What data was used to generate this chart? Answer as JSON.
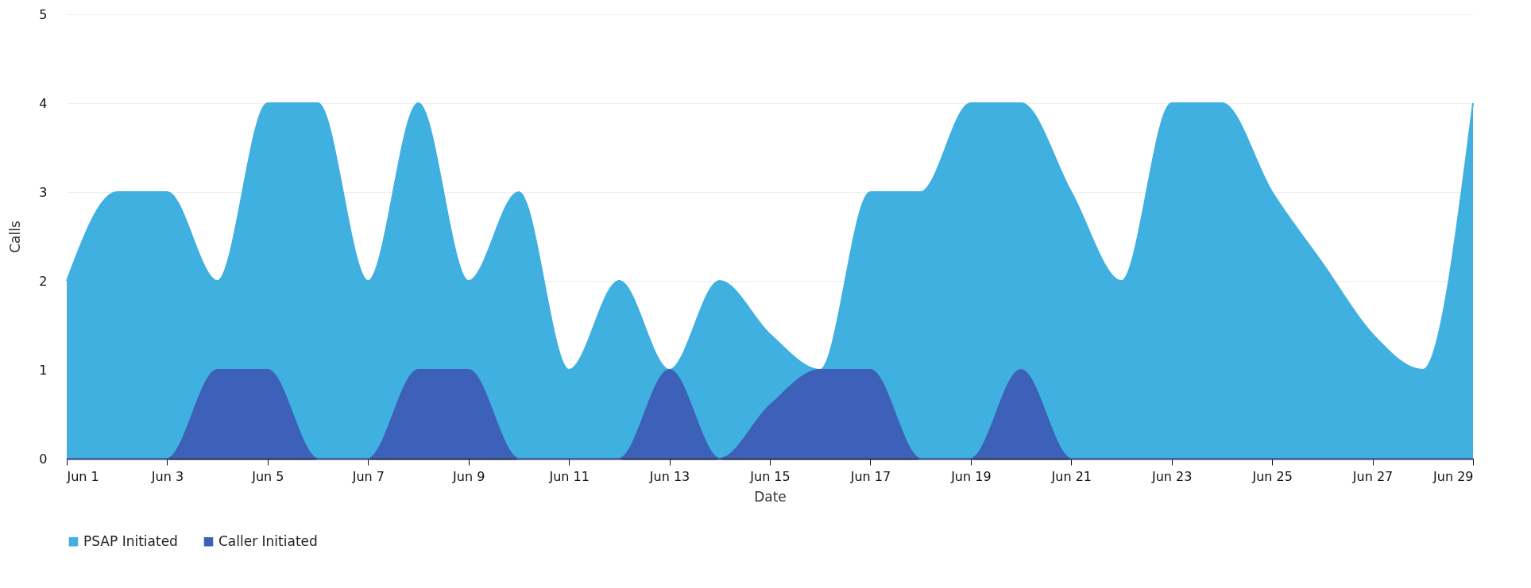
{
  "chart_data": {
    "type": "area",
    "xlabel": "Date",
    "ylabel": "Calls",
    "x": [
      "--06-01",
      "--06-02",
      "--06-03",
      "--06-04",
      "--06-05",
      "--06-06",
      "--06-07",
      "--06-08",
      "--06-09",
      "--06-10",
      "--06-11",
      "--06-12",
      "--06-13",
      "--06-14",
      "--06-15",
      "--06-16",
      "--06-17",
      "--06-18",
      "--06-19",
      "--06-20",
      "--06-21",
      "--06-22",
      "--06-23",
      "--06-24",
      "--06-25",
      "--06-26",
      "--06-27",
      "--06-28",
      "--06-29"
    ],
    "series": [
      {
        "name": "PSAP Initiated",
        "color": "#3fb0e0",
        "values": [
          2,
          3,
          3,
          2,
          4,
          4,
          2,
          4,
          2,
          3,
          1,
          2,
          1,
          2,
          1.4,
          1,
          3,
          3,
          4,
          4,
          3,
          2,
          4,
          4,
          3,
          2.2,
          1.4,
          1,
          4
        ]
      },
      {
        "name": "Caller Initiated",
        "color": "#3d60b8",
        "values": [
          0,
          0,
          0,
          1,
          1,
          0,
          0,
          1,
          1,
          0,
          0,
          0,
          1,
          0,
          0.6,
          1,
          1,
          0,
          0,
          1,
          0,
          0,
          0,
          0,
          0,
          0,
          0,
          0,
          0
        ]
      }
    ],
    "xlim": [
      "--06-01",
      "--06-29"
    ],
    "xticks": [
      {
        "value": "--06-01",
        "label": "Jun 1"
      },
      {
        "value": "--06-03",
        "label": "Jun 3"
      },
      {
        "value": "--06-05",
        "label": "Jun 5"
      },
      {
        "value": "--06-07",
        "label": "Jun 7"
      },
      {
        "value": "--06-09",
        "label": "Jun 9"
      },
      {
        "value": "--06-11",
        "label": "Jun 11"
      },
      {
        "value": "--06-13",
        "label": "Jun 13"
      },
      {
        "value": "--06-15",
        "label": "Jun 15"
      },
      {
        "value": "--06-17",
        "label": "Jun 17"
      },
      {
        "value": "--06-19",
        "label": "Jun 19"
      },
      {
        "value": "--06-21",
        "label": "Jun 21"
      },
      {
        "value": "--06-23",
        "label": "Jun 23"
      },
      {
        "value": "--06-25",
        "label": "Jun 25"
      },
      {
        "value": "--06-27",
        "label": "Jun 27"
      },
      {
        "value": "--06-29",
        "label": "Jun 29"
      }
    ],
    "ylim": [
      0,
      5
    ],
    "yticks": [
      0,
      1,
      2,
      3,
      4,
      5
    ],
    "grid": "y",
    "legend": "bottom"
  }
}
